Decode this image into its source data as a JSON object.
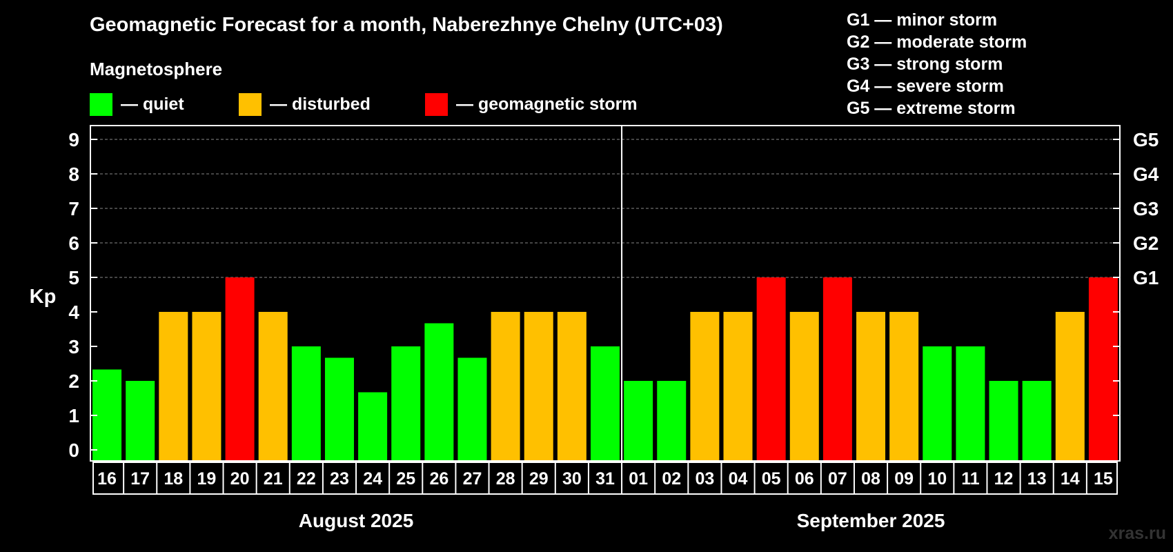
{
  "chart_data": {
    "type": "bar",
    "title": "Geomagnetic Forecast for a month, Naberezhnye Chelny (UTC+03)",
    "subtitle": "Magnetosphere",
    "ylabel": "Kp",
    "ylim": [
      0,
      9
    ],
    "yticks": [
      "0",
      "1",
      "2",
      "3",
      "4",
      "5",
      "6",
      "7",
      "8",
      "9"
    ],
    "right_ticks": [
      {
        "kp": 5,
        "label": "G1"
      },
      {
        "kp": 6,
        "label": "G2"
      },
      {
        "kp": 7,
        "label": "G3"
      },
      {
        "kp": 8,
        "label": "G4"
      },
      {
        "kp": 9,
        "label": "G5"
      }
    ],
    "legend": [
      {
        "key": "quiet",
        "label": "— quiet",
        "color": "#00ff00"
      },
      {
        "key": "disturbed",
        "label": "— disturbed",
        "color": "#ffc000"
      },
      {
        "key": "storm",
        "label": "— geomagnetic storm",
        "color": "#ff0000"
      }
    ],
    "storm_levels": [
      "G1 — minor storm",
      "G2 — moderate storm",
      "G3 — strong storm",
      "G4 — severe storm",
      "G5 — extreme storm"
    ],
    "months": [
      {
        "label": "August 2025",
        "start": 0,
        "count": 16
      },
      {
        "label": "September 2025",
        "start": 16,
        "count": 15
      }
    ],
    "categories": [
      "16",
      "17",
      "18",
      "19",
      "20",
      "21",
      "22",
      "23",
      "24",
      "25",
      "26",
      "27",
      "28",
      "29",
      "30",
      "31",
      "01",
      "02",
      "03",
      "04",
      "05",
      "06",
      "07",
      "08",
      "09",
      "10",
      "11",
      "12",
      "13",
      "14",
      "15"
    ],
    "values": [
      2.33,
      2.0,
      4.0,
      4.0,
      5.0,
      4.0,
      3.0,
      2.67,
      1.67,
      3.0,
      3.67,
      2.67,
      4.0,
      4.0,
      4.0,
      3.0,
      2.0,
      2.0,
      4.0,
      4.0,
      5.0,
      4.0,
      5.0,
      4.0,
      4.0,
      3.0,
      3.0,
      2.0,
      2.0,
      4.0,
      5.0
    ],
    "status": [
      "quiet",
      "quiet",
      "disturbed",
      "disturbed",
      "storm",
      "disturbed",
      "quiet",
      "quiet",
      "quiet",
      "quiet",
      "quiet",
      "quiet",
      "disturbed",
      "disturbed",
      "disturbed",
      "quiet",
      "quiet",
      "quiet",
      "disturbed",
      "disturbed",
      "storm",
      "disturbed",
      "storm",
      "disturbed",
      "disturbed",
      "quiet",
      "quiet",
      "quiet",
      "quiet",
      "disturbed",
      "storm"
    ],
    "grid": true
  },
  "brand": "xras.ru"
}
